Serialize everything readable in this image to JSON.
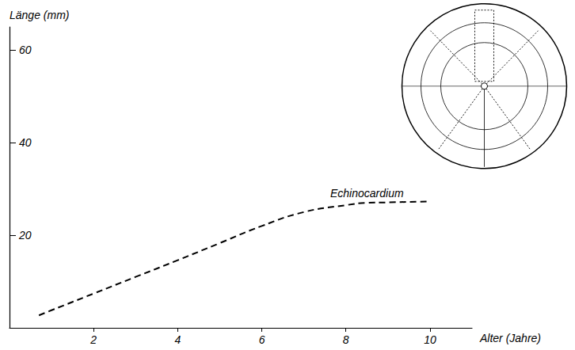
{
  "chart_data": {
    "type": "line",
    "x_label": "Alter (Jahre)",
    "y_label": "Länge (mm)",
    "x": [
      0.7,
      1,
      2,
      3,
      4,
      5,
      6,
      7,
      8,
      8.5,
      9,
      10
    ],
    "series": [
      {
        "name": "Echinocardium",
        "color": "#000000",
        "line_style": "dashed",
        "values": [
          2.7,
          3.8,
          7.4,
          11,
          14.6,
          18.3,
          22,
          25,
          26.5,
          27,
          27.1,
          27.3
        ]
      }
    ],
    "annotations": [
      {
        "text": "Echinocardium",
        "x": 8.5,
        "y": 29
      }
    ],
    "xlim": [
      0,
      11
    ],
    "xticks": [
      2,
      4,
      6,
      8,
      10
    ],
    "ylim": [
      0,
      65
    ],
    "yticks": [
      20,
      40,
      60
    ],
    "grid": false
  }
}
